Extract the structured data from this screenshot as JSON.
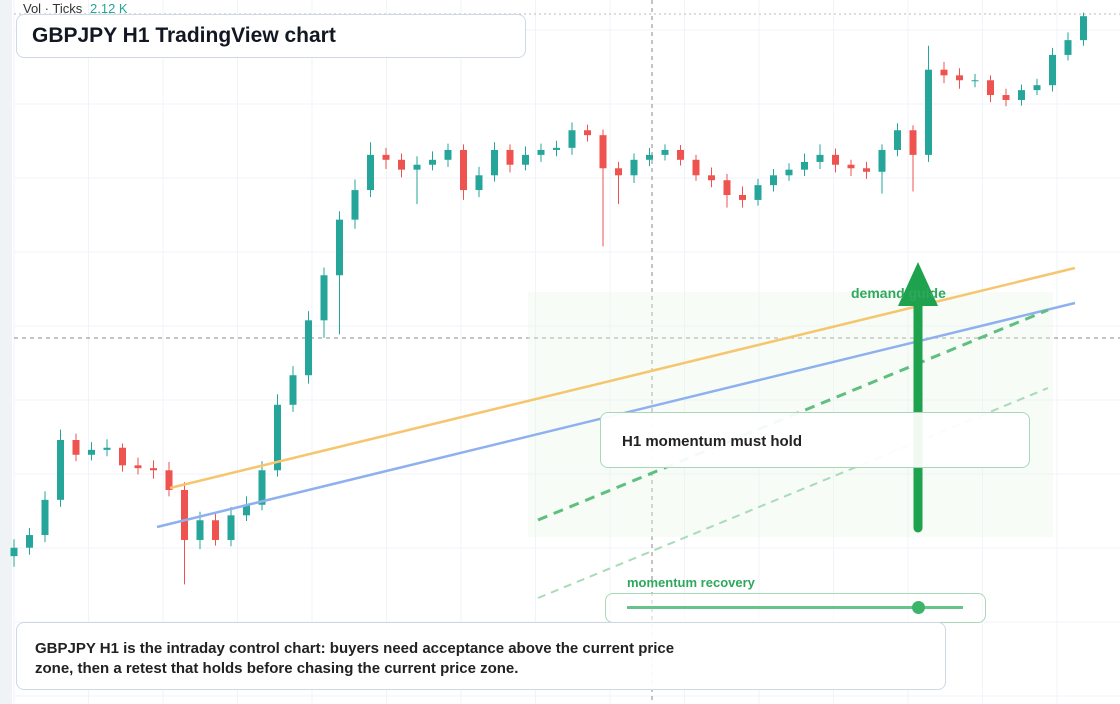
{
  "chart_data": {
    "type": "candlestick",
    "title": "GBPJPY H1 TradingView chart",
    "volume_label": "Vol · Ticks",
    "volume_value": "2.12 K",
    "annotations": [
      "demand guide",
      "H1 momentum must hold",
      "momentum recovery"
    ],
    "caption": "GBPJPY H1 is the intraday control chart: buyers need acceptance above the current price zone, then a retest that holds before chasing the current price zone.",
    "ylim": [
      0,
      100
    ],
    "grid": true,
    "up_color": "#26a69a",
    "down_color": "#ef5350",
    "open": [
      21.0,
      22.2,
      24.0,
      29.0,
      37.5,
      35.4,
      36.1,
      36.4,
      33.9,
      33.5,
      33.2,
      30.4,
      23.3,
      26.1,
      23.3,
      26.8,
      28.3,
      33.2,
      42.5,
      46.7,
      54.5,
      60.9,
      68.8,
      73.0,
      78.0,
      77.3,
      75.9,
      76.6,
      77.3,
      78.7,
      73.0,
      75.1,
      78.7,
      76.6,
      78.0,
      78.7,
      79.0,
      81.5,
      80.8,
      76.1,
      75.1,
      77.3,
      78.0,
      78.7,
      77.3,
      75.1,
      74.4,
      72.3,
      71.6,
      73.7,
      75.1,
      75.9,
      77.0,
      78.0,
      76.6,
      76.1,
      75.6,
      78.7,
      81.5,
      78.0,
      90.1,
      89.3,
      88.6,
      88.6,
      86.5,
      85.8,
      87.2,
      87.9,
      92.2,
      94.3
    ],
    "high": [
      23.4,
      25.0,
      30.2,
      39.0,
      38.4,
      37.2,
      37.6,
      37.0,
      35.0,
      34.6,
      34.4,
      31.5,
      27.3,
      27.0,
      28.0,
      29.5,
      34.5,
      44.0,
      48.0,
      55.8,
      62.0,
      70.0,
      74.5,
      79.8,
      79.0,
      78.2,
      77.8,
      78.5,
      79.6,
      79.5,
      76.3,
      79.8,
      79.5,
      79.2,
      79.6,
      80.0,
      82.6,
      82.3,
      81.6,
      77.0,
      78.2,
      79.0,
      79.5,
      79.4,
      78.0,
      76.2,
      75.3,
      73.5,
      74.6,
      76.0,
      76.8,
      78.2,
      79.5,
      78.9,
      77.3,
      77.0,
      79.5,
      82.5,
      82.2,
      93.5,
      91.2,
      90.3,
      89.5,
      89.3,
      87.4,
      88.0,
      88.8,
      93.2,
      95.4,
      98.2
    ],
    "low": [
      19.5,
      21.2,
      23.0,
      28.0,
      34.5,
      34.6,
      35.2,
      33.0,
      32.6,
      32.0,
      29.5,
      17.0,
      22.0,
      22.5,
      22.4,
      26.0,
      27.5,
      32.3,
      41.5,
      45.5,
      52.0,
      52.5,
      67.5,
      72.0,
      76.0,
      74.8,
      71.0,
      75.8,
      76.3,
      71.6,
      72.0,
      74.2,
      75.5,
      75.8,
      77.0,
      77.8,
      78.0,
      79.9,
      65.0,
      71.0,
      74.0,
      76.4,
      77.2,
      76.5,
      74.3,
      73.4,
      70.5,
      70.5,
      70.8,
      72.8,
      74.3,
      75.0,
      76.0,
      75.5,
      75.0,
      74.6,
      72.5,
      77.8,
      72.8,
      77.0,
      88.2,
      87.4,
      87.6,
      85.5,
      84.9,
      85.0,
      86.5,
      87.0,
      91.4,
      93.5
    ],
    "close": [
      22.2,
      24.0,
      29.0,
      37.5,
      35.4,
      36.1,
      36.4,
      33.9,
      33.5,
      33.2,
      30.4,
      23.3,
      26.1,
      23.3,
      26.8,
      28.3,
      33.2,
      42.5,
      46.7,
      54.5,
      60.9,
      68.8,
      73.0,
      78.0,
      77.3,
      75.9,
      76.6,
      77.3,
      78.7,
      73.0,
      75.1,
      78.7,
      76.6,
      78.0,
      78.7,
      79.0,
      81.5,
      80.8,
      76.1,
      75.1,
      77.3,
      78.0,
      78.7,
      77.3,
      75.1,
      74.4,
      72.3,
      71.6,
      73.7,
      75.1,
      75.9,
      77.0,
      78.0,
      76.6,
      76.1,
      75.6,
      78.7,
      81.5,
      78.0,
      90.1,
      89.3,
      88.6,
      88.6,
      86.5,
      85.8,
      87.2,
      87.9,
      92.2,
      94.3,
      97.7
    ]
  }
}
